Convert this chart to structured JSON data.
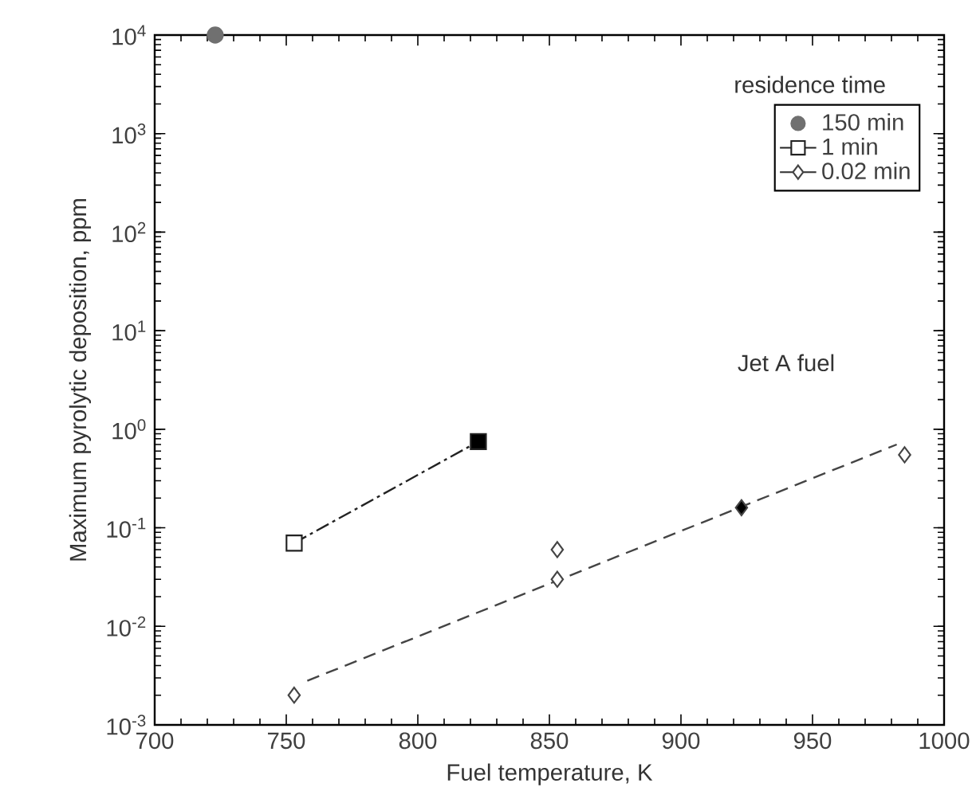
{
  "chart_data": {
    "type": "scatter",
    "xlabel": "Fuel temperature, K",
    "ylabel": "Maximum pyrolytic deposition, ppm",
    "legend_title": "residence time",
    "annotations": [
      "Jet A fuel"
    ],
    "log": "y",
    "legend": "top right",
    "xlim": [
      700,
      1000
    ],
    "xticks": [
      700,
      750,
      800,
      850,
      900,
      950,
      1000
    ],
    "ylim": [
      0.001,
      10000
    ],
    "yticks": [
      {
        "value": 0.001,
        "label": "10$^{-3}$"
      },
      {
        "value": 0.01,
        "label": "10$^{-2}$"
      },
      {
        "value": 0.1,
        "label": "10$^{-1}$"
      },
      {
        "value": 1,
        "label": "10$^{0}$"
      },
      {
        "value": 10,
        "label": "10$^{1}$"
      },
      {
        "value": 100,
        "label": "10$^{2}$"
      },
      {
        "value": 1000,
        "label": "10$^{3}$"
      },
      {
        "value": 10000,
        "label": "10$^{4}$"
      }
    ],
    "series": [
      {
        "name": "150 min",
        "marker": "circle",
        "color": "#707070",
        "colors": [
          "#707070"
        ],
        "x": [
          723
        ],
        "values": [
          10000
        ]
      },
      {
        "name": "1 min",
        "type": "line",
        "marker": "square",
        "line_style": "dashdot",
        "color": "#222222",
        "colors": [
          "#ffffff",
          "#000000"
        ],
        "x": [
          753,
          823
        ],
        "values": [
          0.07,
          0.75
        ]
      },
      {
        "name": "0.02 min",
        "marker": "diamond",
        "color": "#444444",
        "colors": [
          "#ffffff",
          "#ffffff",
          "#ffffff",
          "#000000",
          "#ffffff"
        ],
        "x": [
          753,
          853,
          853,
          923,
          985
        ],
        "values": [
          0.002,
          0.06,
          0.03,
          0.16,
          0.55
        ]
      },
      {
        "type": "line",
        "marker": "none",
        "line_style": "dashed",
        "color": "#444444",
        "x": [
          758,
          982
        ],
        "values": [
          0.0028,
          0.7
        ]
      }
    ]
  }
}
